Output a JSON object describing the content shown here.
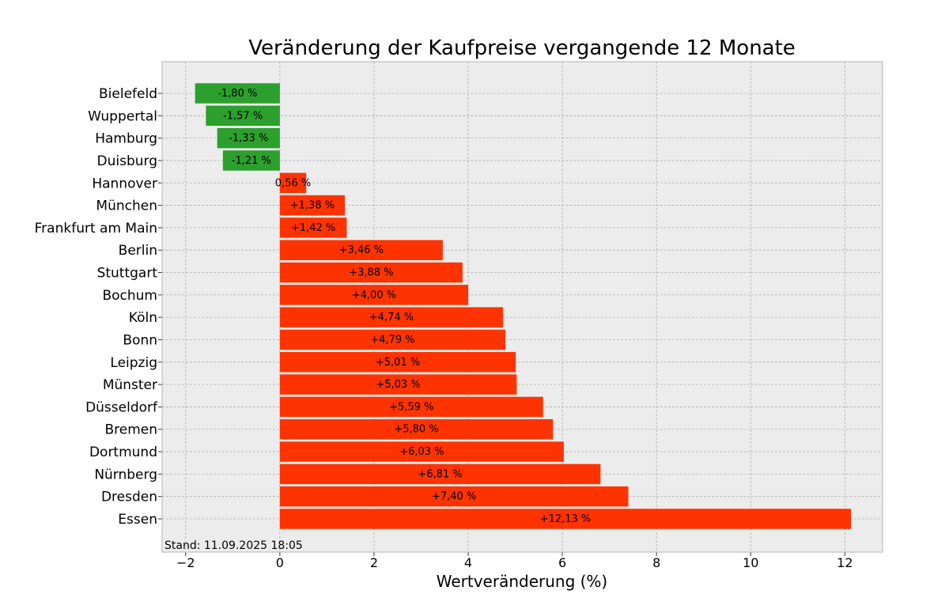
{
  "chart_data": {
    "type": "bar",
    "orientation": "horizontal",
    "title": "Veränderung der Kaufpreise vergangende 12 Monate",
    "xlabel": "Wertveränderung (%)",
    "ylabel": "",
    "xlim": [
      -2.5,
      12.8
    ],
    "xticks": [
      -2,
      0,
      2,
      4,
      6,
      8,
      10,
      12
    ],
    "xtick_labels": [
      "−2",
      "0",
      "2",
      "4",
      "6",
      "8",
      "10",
      "12"
    ],
    "grid": true,
    "categories": [
      "Bielefeld",
      "Wuppertal",
      "Hamburg",
      "Duisburg",
      "Hannover",
      "München",
      "Frankfurt am Main",
      "Berlin",
      "Stuttgart",
      "Bochum",
      "Köln",
      "Bonn",
      "Leipzig",
      "Münster",
      "Düsseldorf",
      "Bremen",
      "Dortmund",
      "Nürnberg",
      "Dresden",
      "Essen"
    ],
    "values": [
      -1.8,
      -1.57,
      -1.33,
      -1.21,
      0.56,
      1.38,
      1.42,
      3.46,
      3.88,
      4.0,
      4.74,
      4.79,
      5.01,
      5.03,
      5.59,
      5.8,
      6.03,
      6.81,
      7.4,
      12.13
    ],
    "labels": [
      "-1,80 %",
      "-1,57 %",
      "-1,33 %",
      "-1,21 %",
      "0,56 %",
      "+1,38 %",
      "+1,42 %",
      "+3,46 %",
      "+3,88 %",
      "+4,00 %",
      "+4,74 %",
      "+4,79 %",
      "+5,01 %",
      "+5,03 %",
      "+5,59 %",
      "+5,80 %",
      "+6,03 %",
      "+6,81 %",
      "+7,40 %",
      "+12,13 %"
    ],
    "colors": {
      "negative": "#2ca02c",
      "positive": "#ff3300",
      "background": "#ececec"
    },
    "annotation": "Stand: 11.09.2025 18:05"
  }
}
